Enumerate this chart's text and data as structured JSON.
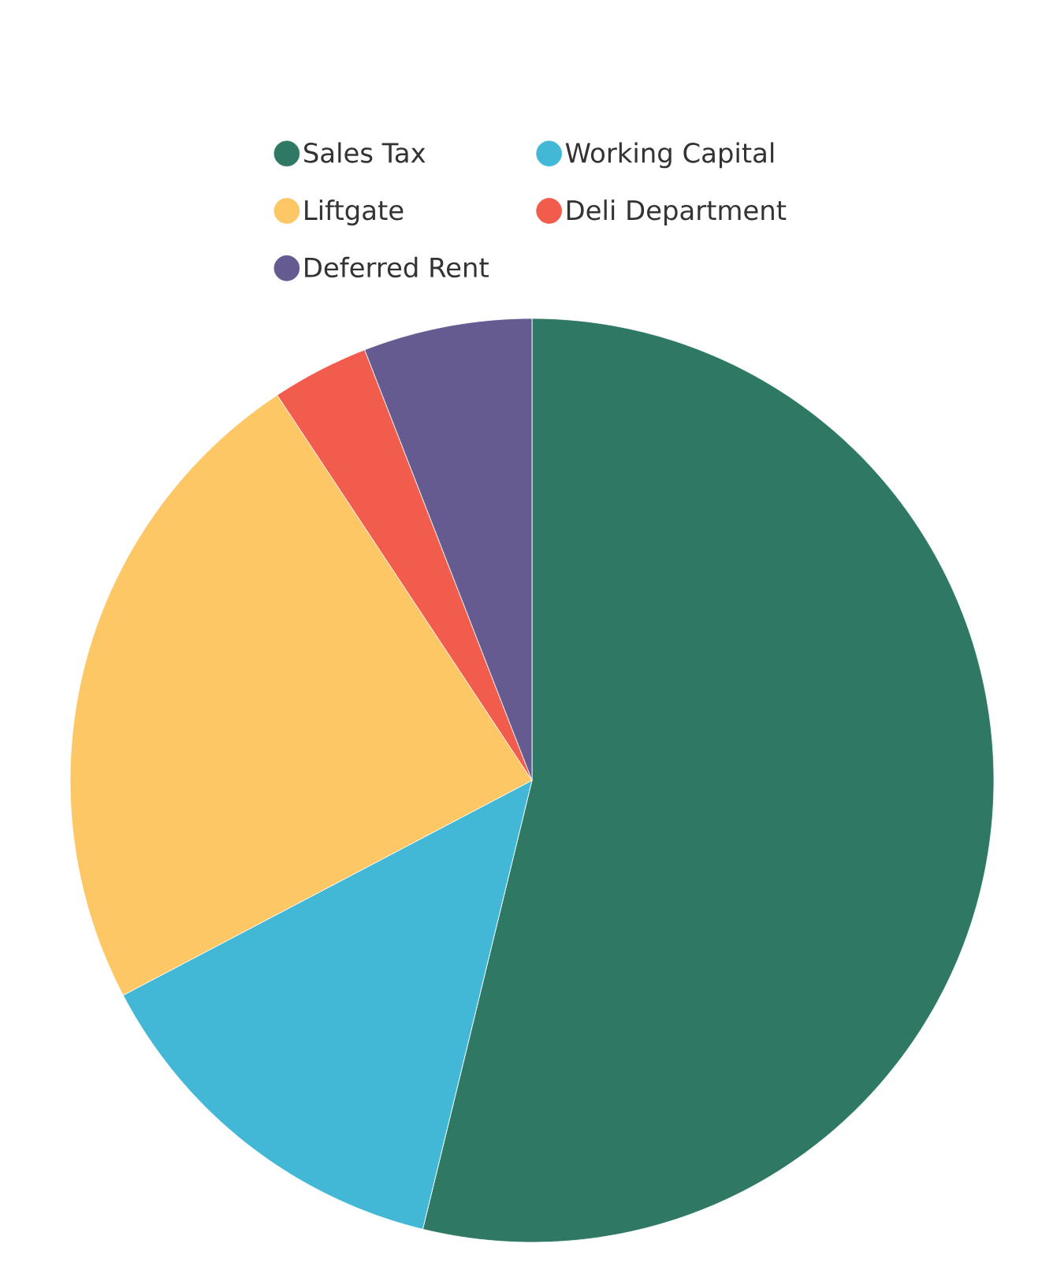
{
  "chart_data": {
    "type": "pie",
    "categories": [
      "Sales Tax",
      "Working Capital",
      "Liftgate",
      "Deli Department",
      "Deferred Rent"
    ],
    "values": [
      53.8,
      13.5,
      23.4,
      3.4,
      5.9
    ],
    "colors": [
      "#2e7864",
      "#42b8d6",
      "#fdc765",
      "#f25c4c",
      "#655b91"
    ],
    "legend": "top"
  }
}
